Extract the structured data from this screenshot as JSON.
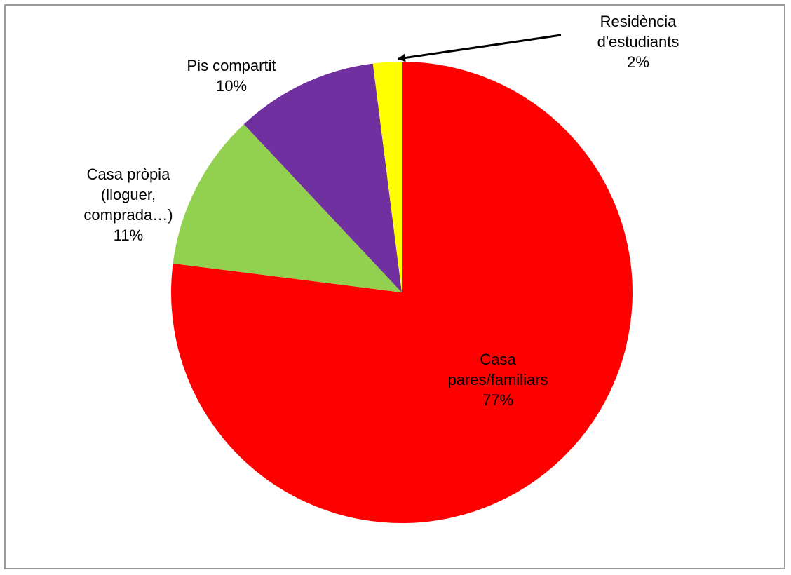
{
  "chart_data": {
    "type": "pie",
    "title": "",
    "start": "12 o'clock, clockwise",
    "slices": [
      {
        "label_lines": [
          "Casa",
          "pares/familiars"
        ],
        "percent_label": "77%",
        "value": 77,
        "color": "#ff0000"
      },
      {
        "label_lines": [
          "Casa pròpia",
          "(lloguer,",
          "comprada…)"
        ],
        "percent_label": "11%",
        "value": 11,
        "color": "#92d050"
      },
      {
        "label_lines": [
          "Pis compartit"
        ],
        "percent_label": "10%",
        "value": 10,
        "color": "#7030a0"
      },
      {
        "label_lines": [
          "Residència",
          "d'estudiants"
        ],
        "percent_label": "2%",
        "value": 2,
        "color": "#ffff00"
      }
    ]
  }
}
